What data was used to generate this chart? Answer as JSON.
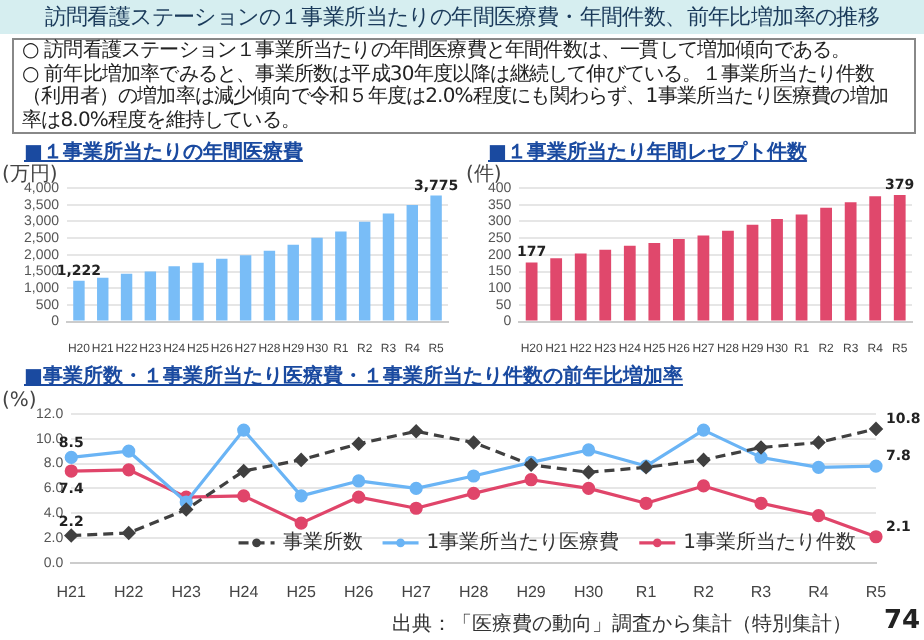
{
  "chart_data": [
    {
      "type": "bar",
      "title": "■１事業所当たりの年間医療費",
      "ylabel": "(万円)",
      "annotations": [
        "訪問看護ステーションの１事業所当たりの年間医療費・年間件数、前年比増加率の推移",
        "○ 訪問看護ステーション１事業所当たりの年間医療費と年間件数は、一貫して増加傾向である。",
        "○ 前年比増加率でみると、事業所数は平成30年度以降は継続して伸びている。１事業所当たり件数（利用者）の増加率は減少傾向で令和５年度は2.0%程度にも関わらず、1事業所当たり医療費の増加率は8.0%程度を維持している。"
      ],
      "categories": [
        "H20",
        "H21",
        "H22",
        "H23",
        "H24",
        "H25",
        "H26",
        "H27",
        "H28",
        "H29",
        "H30",
        "R1",
        "R2",
        "R3",
        "R4",
        "R5"
      ],
      "values": [
        1222,
        1310,
        1430,
        1500,
        1660,
        1760,
        1880,
        1990,
        2120,
        2300,
        2510,
        2700,
        2990,
        3240,
        3490,
        3775
      ],
      "value_labels": [
        "1,222",
        null,
        null,
        null,
        null,
        null,
        null,
        null,
        null,
        null,
        null,
        null,
        null,
        null,
        null,
        "3,775"
      ],
      "color": "#79bdf7",
      "ylim": [
        0,
        4000
      ],
      "yticks": [
        0,
        500,
        {
          "value": 1000,
          "label": "1,000"
        },
        {
          "value": 1500,
          "label": "1,500"
        },
        {
          "value": 2000,
          "label": "2,000"
        },
        {
          "value": 2500,
          "label": "2,500"
        },
        {
          "value": 3000,
          "label": "3,000"
        },
        {
          "value": 3500,
          "label": "3,500"
        },
        {
          "value": 4000,
          "label": "4,000"
        }
      ],
      "grid": "y"
    },
    {
      "type": "bar",
      "title": "■１事業所当たり年間レセプト件数",
      "ylabel": "(件)",
      "categories": [
        "H20",
        "H21",
        "H22",
        "H23",
        "H24",
        "H25",
        "H26",
        "H27",
        "H28",
        "H29",
        "H30",
        "R1",
        "R2",
        "R3",
        "R4",
        "R5"
      ],
      "values": [
        177,
        190,
        204,
        215,
        227,
        235,
        247,
        258,
        272,
        290,
        307,
        321,
        341,
        357,
        375,
        379
      ],
      "value_labels": [
        "177",
        null,
        null,
        null,
        null,
        null,
        null,
        null,
        null,
        null,
        null,
        null,
        null,
        null,
        null,
        "379"
      ],
      "color": "#e0486c",
      "ylim": [
        0,
        400
      ],
      "yticks": [
        0,
        50,
        100,
        150,
        200,
        250,
        300,
        350,
        400
      ],
      "grid": "y"
    },
    {
      "type": "line",
      "title": "■事業所数・１事業所当たり医療費・１事業所当たり件数の前年比増加率",
      "ylabel": "(%)",
      "annotations": [
        "出典：「医療費の動向」調査から集計（特別集計）",
        "74"
      ],
      "categories": [
        "H21",
        "H22",
        "H23",
        "H24",
        "H25",
        "H26",
        "H27",
        "H28",
        "H29",
        "H30",
        "R1",
        "R2",
        "R3",
        "R4",
        "R5"
      ],
      "series": [
        {
          "name": "事業所数",
          "color": "#404040",
          "line_style": "dashed",
          "marker": "diamond",
          "values": [
            2.2,
            2.4,
            4.3,
            7.4,
            8.3,
            9.6,
            10.6,
            9.7,
            7.9,
            7.3,
            7.7,
            8.3,
            9.3,
            9.7,
            10.8
          ],
          "value_labels": [
            "2.2",
            null,
            null,
            null,
            null,
            null,
            null,
            null,
            null,
            null,
            null,
            null,
            null,
            null,
            "10.8"
          ]
        },
        {
          "name": "1事業所当たり医療費",
          "color": "#6ab4f5",
          "line_style": "solid",
          "marker": "circle",
          "values": [
            8.5,
            9.0,
            4.9,
            10.7,
            5.4,
            6.6,
            6.0,
            7.0,
            8.1,
            9.1,
            7.8,
            10.7,
            8.5,
            7.7,
            7.8
          ],
          "value_labels": [
            "8.5",
            null,
            null,
            null,
            null,
            null,
            null,
            null,
            null,
            null,
            null,
            null,
            null,
            null,
            "7.8"
          ]
        },
        {
          "name": "1事業所当たり件数",
          "color": "#e0456a",
          "line_style": "solid",
          "marker": "circle",
          "values": [
            7.4,
            7.5,
            5.3,
            5.4,
            3.2,
            5.3,
            4.4,
            5.6,
            6.7,
            6.0,
            4.8,
            6.2,
            4.8,
            3.8,
            2.1
          ],
          "value_labels": [
            "7.4",
            null,
            null,
            null,
            null,
            null,
            null,
            null,
            null,
            null,
            null,
            null,
            null,
            null,
            "2.1"
          ]
        }
      ],
      "legend": "bottom right",
      "ylim": [
        0,
        12
      ],
      "yticks": [
        {
          "value": 0,
          "label": "0.0"
        },
        {
          "value": 2,
          "label": "2.0"
        },
        {
          "value": 4,
          "label": "4.0"
        },
        {
          "value": 6,
          "label": "6.0"
        },
        {
          "value": 8,
          "label": "8.0"
        },
        {
          "value": 10,
          "label": "10.0"
        },
        {
          "value": 12,
          "label": "12.0"
        }
      ],
      "grid": "y"
    }
  ]
}
